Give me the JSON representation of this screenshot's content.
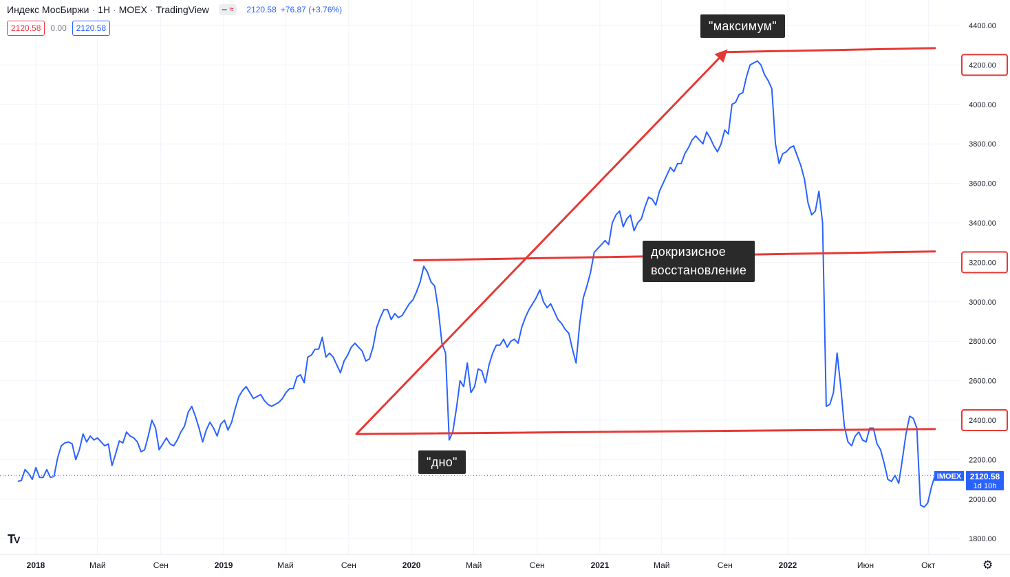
{
  "header": {
    "title": "Индекс МосБиржи",
    "timeframe": "1Н",
    "exchange": "MOEX",
    "platform": "TradingView",
    "last_price": "2120.58",
    "change": "+76.87 (+3.76%)"
  },
  "price_boxes": {
    "left": "2120.58",
    "middle": "0.00",
    "right": "2120.58"
  },
  "current_label": {
    "symbol": "IMOEX",
    "price": "2120.58",
    "countdown": "1d 10h"
  },
  "annotations": {
    "top": "\"максимум\"",
    "middle_line1": "докризисное",
    "middle_line2": "восстановление",
    "bottom": "\"дно\""
  },
  "colors": {
    "series": "#2962ff",
    "annotation": "#e53935",
    "grid": "#f0f3fa"
  },
  "chart_data": {
    "type": "line",
    "title": "Индекс МосБиржи · 1Н · MOEX",
    "xlabel": "",
    "ylabel": "",
    "ylim": [
      1750,
      4480
    ],
    "x_axis_ticks": [
      "2018",
      "Май",
      "Сен",
      "2019",
      "Май",
      "Сен",
      "2020",
      "Май",
      "Сен",
      "2021",
      "Май",
      "Сен",
      "2022",
      "Июн",
      "Окт"
    ],
    "y_axis_ticks": [
      "4400.00",
      "4200.00",
      "4000.00",
      "3800.00",
      "3600.00",
      "3400.00",
      "3200.00",
      "3000.00",
      "2800.00",
      "2600.00",
      "2400.00",
      "2200.00",
      "2000.00",
      "1800.00"
    ],
    "highlighted_levels": [
      "4200.00",
      "3200.00",
      "2400.00"
    ],
    "x_start": "2017-11-27",
    "x_end": "2022-10-14",
    "series": [
      {
        "name": "IMOEX",
        "values": [
          2090,
          2095,
          2150,
          2130,
          2100,
          2160,
          2110,
          2110,
          2150,
          2110,
          2115,
          2210,
          2270,
          2285,
          2290,
          2280,
          2200,
          2250,
          2330,
          2290,
          2320,
          2300,
          2310,
          2290,
          2270,
          2280,
          2170,
          2230,
          2295,
          2285,
          2340,
          2320,
          2310,
          2290,
          2240,
          2250,
          2320,
          2400,
          2360,
          2250,
          2280,
          2310,
          2280,
          2270,
          2300,
          2340,
          2370,
          2440,
          2470,
          2420,
          2360,
          2290,
          2350,
          2390,
          2360,
          2320,
          2380,
          2400,
          2350,
          2390,
          2460,
          2520,
          2550,
          2570,
          2540,
          2510,
          2520,
          2530,
          2500,
          2480,
          2470,
          2480,
          2490,
          2510,
          2540,
          2560,
          2560,
          2620,
          2630,
          2590,
          2720,
          2730,
          2760,
          2760,
          2820,
          2720,
          2740,
          2720,
          2680,
          2640,
          2700,
          2730,
          2770,
          2790,
          2770,
          2750,
          2700,
          2710,
          2770,
          2870,
          2920,
          2960,
          2960,
          2910,
          2940,
          2920,
          2930,
          2960,
          2990,
          3010,
          3050,
          3100,
          3180,
          3150,
          3100,
          3080,
          2960,
          2790,
          2740,
          2300,
          2340,
          2460,
          2600,
          2570,
          2690,
          2540,
          2570,
          2660,
          2650,
          2590,
          2680,
          2740,
          2780,
          2780,
          2810,
          2770,
          2800,
          2810,
          2790,
          2870,
          2920,
          2960,
          2990,
          3020,
          3060,
          3000,
          2970,
          2990,
          2950,
          2910,
          2890,
          2860,
          2840,
          2760,
          2690,
          2890,
          3020,
          3080,
          3150,
          3250,
          3270,
          3290,
          3310,
          3290,
          3400,
          3440,
          3460,
          3380,
          3420,
          3440,
          3360,
          3400,
          3420,
          3480,
          3530,
          3520,
          3490,
          3560,
          3600,
          3640,
          3680,
          3660,
          3700,
          3700,
          3750,
          3780,
          3820,
          3840,
          3820,
          3800,
          3860,
          3830,
          3790,
          3760,
          3800,
          3870,
          3850,
          4000,
          4010,
          4050,
          4060,
          4140,
          4200,
          4210,
          4220,
          4200,
          4150,
          4120,
          4080,
          3800,
          3700,
          3750,
          3760,
          3780,
          3790,
          3740,
          3690,
          3620,
          3500,
          3440,
          3460,
          3560,
          3400,
          2470,
          2480,
          2540,
          2740,
          2570,
          2370,
          2290,
          2270,
          2320,
          2340,
          2300,
          2290,
          2360,
          2360,
          2280,
          2250,
          2180,
          2100,
          2090,
          2120,
          2080,
          2200,
          2330,
          2420,
          2410,
          2360,
          1970,
          1960,
          1980,
          2060,
          2120
        ]
      }
    ],
    "overlay_lines": [
      {
        "from": [
          "2019-09-16",
          2330
        ],
        "to": [
          "2022-10-14",
          2355
        ]
      },
      {
        "from": [
          "2020-01-06",
          3210
        ],
        "to": [
          "2022-10-14",
          3255
        ]
      },
      {
        "from": [
          "2019-09-16",
          2330
        ],
        "to": [
          "2021-09-01",
          4265
        ],
        "arrow": true
      },
      {
        "from": [
          "2021-09-01",
          4265
        ],
        "to": [
          "2022-10-14",
          4285
        ]
      }
    ]
  }
}
